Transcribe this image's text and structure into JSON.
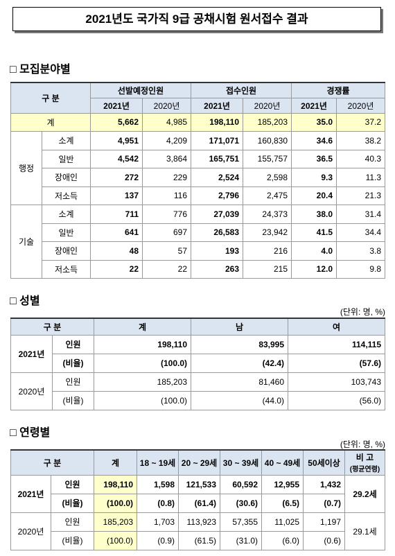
{
  "title": "2021년도 국가직 9급 공채시험 원서접수 결과",
  "recruitment": {
    "heading": "□ 모집분야별",
    "header": {
      "division": "구 분",
      "groups": [
        "선발예정인원",
        "접수인원",
        "경쟁률"
      ],
      "years": [
        "2021년",
        "2020년"
      ]
    },
    "total": {
      "label": "계",
      "values": [
        "5,662",
        "4,985",
        "198,110",
        "185,203",
        "35.0",
        "37.2"
      ]
    },
    "groups": [
      {
        "name": "행정",
        "rows": [
          {
            "label": "소계",
            "values": [
              "4,951",
              "4,209",
              "171,071",
              "160,830",
              "34.6",
              "38.2"
            ]
          },
          {
            "label": "일반",
            "values": [
              "4,542",
              "3,864",
              "165,751",
              "155,757",
              "36.5",
              "40.3"
            ]
          },
          {
            "label": "장애인",
            "values": [
              "272",
              "229",
              "2,524",
              "2,598",
              "9.3",
              "11.3"
            ]
          },
          {
            "label": "저소득",
            "values": [
              "137",
              "116",
              "2,796",
              "2,475",
              "20.4",
              "21.3"
            ]
          }
        ]
      },
      {
        "name": "기술",
        "rows": [
          {
            "label": "소계",
            "values": [
              "711",
              "776",
              "27,039",
              "24,373",
              "38.0",
              "31.4"
            ]
          },
          {
            "label": "일반",
            "values": [
              "641",
              "697",
              "26,583",
              "23,942",
              "41.5",
              "34.4"
            ]
          },
          {
            "label": "장애인",
            "values": [
              "48",
              "57",
              "193",
              "216",
              "4.0",
              "3.8"
            ]
          },
          {
            "label": "저소득",
            "values": [
              "22",
              "22",
              "263",
              "215",
              "12.0",
              "9.8"
            ]
          }
        ]
      }
    ]
  },
  "gender": {
    "heading": "□ 성별",
    "unit": "(단위: 명, %)",
    "header": [
      "구 분",
      "계",
      "남",
      "여"
    ],
    "years": [
      {
        "year": "2021년",
        "rows": [
          {
            "label": "인원",
            "values": [
              "198,110",
              "83,995",
              "114,115"
            ]
          },
          {
            "label": "(비율)",
            "values": [
              "(100.0)",
              "(42.4)",
              "(57.6)"
            ]
          }
        ]
      },
      {
        "year": "2020년",
        "rows": [
          {
            "label": "인원",
            "values": [
              "185,203",
              "81,460",
              "103,743"
            ]
          },
          {
            "label": "(비율)",
            "values": [
              "(100.0)",
              "(44.0)",
              "(56.0)"
            ]
          }
        ]
      }
    ]
  },
  "age": {
    "heading": "□ 연령별",
    "unit": "(단위: 명, %)",
    "header": [
      "구 분",
      "계",
      "18 ~ 19세",
      "20 ~ 29세",
      "30 ~ 39세",
      "40 ~ 49세",
      "50세이상"
    ],
    "remark_header": "비 고",
    "remark_sub": "(평균연령)",
    "years": [
      {
        "year": "2021년",
        "remark": "29.2세",
        "rows": [
          {
            "label": "인원",
            "values": [
              "198,110",
              "1,598",
              "121,533",
              "60,592",
              "12,955",
              "1,432"
            ]
          },
          {
            "label": "(비율)",
            "values": [
              "(100.0)",
              "(0.8)",
              "(61.4)",
              "(30.6)",
              "(6.5)",
              "(0.7)"
            ]
          }
        ]
      },
      {
        "year": "2020년",
        "remark": "29.1세",
        "rows": [
          {
            "label": "인원",
            "values": [
              "185,203",
              "1,703",
              "113,923",
              "57,355",
              "11,025",
              "1,197"
            ]
          },
          {
            "label": "(비율)",
            "values": [
              "(100.0)",
              "(0.9)",
              "(61.5)",
              "(31.0)",
              "(6.0)",
              "(0.6)"
            ]
          }
        ]
      }
    ]
  }
}
